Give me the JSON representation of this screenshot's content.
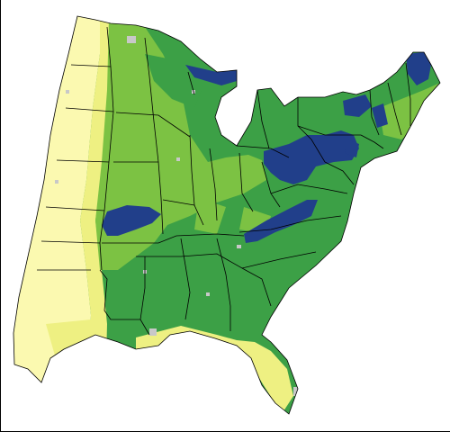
{
  "map": {
    "region": "eastern-united-states",
    "palette": {
      "background": "#ffffff",
      "border": "#000000",
      "class_1": "#fbf9b0",
      "class_2": "#eef082",
      "class_3": "#7cc243",
      "class_4": "#3ca046",
      "class_5": "#213f8a",
      "no_data": "#c8c8c8"
    }
  }
}
